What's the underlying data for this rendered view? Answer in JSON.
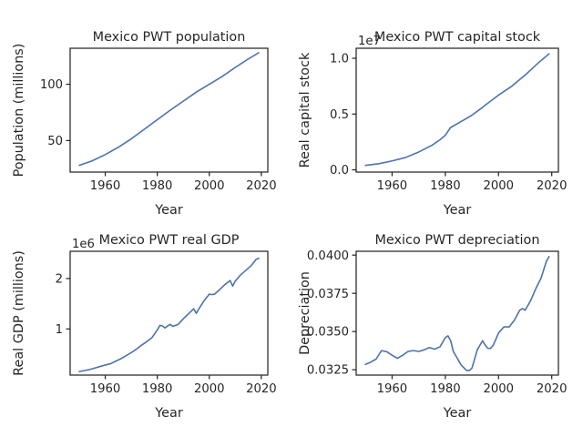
{
  "chart_data": [
    {
      "type": "line",
      "title": "Mexico PWT population",
      "xlabel": "Year",
      "ylabel": "Population (millions)",
      "offset_text": "",
      "xlim": [
        1946.5,
        2022.5
      ],
      "ylim": [
        22,
        132
      ],
      "xticks": [
        1960,
        1980,
        2000,
        2020
      ],
      "yticks": [
        50,
        100
      ],
      "ytick_labels": [
        "50",
        "100"
      ],
      "series": [
        {
          "x": [
            1950,
            1955,
            1960,
            1965,
            1970,
            1975,
            1980,
            1985,
            1990,
            1995,
            2000,
            2005,
            2010,
            2015,
            2019
          ],
          "y": [
            28,
            32,
            37.5,
            44,
            51.5,
            60,
            68.5,
            77,
            85,
            93,
            100,
            107,
            115,
            122.5,
            128
          ]
        }
      ]
    },
    {
      "type": "line",
      "title": "Mexico PWT capital stock",
      "xlabel": "Year",
      "ylabel": "Real capital stock",
      "offset_text": "1e7",
      "xlim": [
        1946.5,
        2022.5
      ],
      "ylim": [
        -200000,
        10900000
      ],
      "xticks": [
        1960,
        1980,
        2000,
        2020
      ],
      "yticks": [
        0,
        5000000,
        10000000
      ],
      "ytick_labels": [
        "0.0",
        "0.5",
        "1.0"
      ],
      "series": [
        {
          "x": [
            1950,
            1955,
            1960,
            1965,
            1970,
            1975,
            1978,
            1980,
            1982,
            1985,
            1990,
            1994,
            1995,
            2000,
            2005,
            2010,
            2015,
            2019
          ],
          "y": [
            400000,
            550000,
            800000,
            1100000,
            1600000,
            2200000,
            2700000,
            3100000,
            3800000,
            4200000,
            4900000,
            5600000,
            5800000,
            6700000,
            7500000,
            8500000,
            9600000,
            10400000
          ]
        }
      ]
    },
    {
      "type": "line",
      "title": "Mexico PWT real GDP",
      "xlabel": "Year",
      "ylabel": "Real GDP (millions)",
      "offset_text": "1e6",
      "xlim": [
        1946.5,
        2022.5
      ],
      "ylim": [
        85000,
        2540000
      ],
      "xticks": [
        1960,
        1980,
        2000,
        2020
      ],
      "yticks": [
        1000000,
        2000000
      ],
      "ytick_labels": [
        "1",
        "2"
      ],
      "series": [
        {
          "x": [
            1950,
            1952,
            1954,
            1956,
            1958,
            1960,
            1962,
            1964,
            1966,
            1968,
            1970,
            1972,
            1974,
            1976,
            1978,
            1980,
            1981,
            1982,
            1983,
            1984,
            1985,
            1986,
            1987,
            1988,
            1990,
            1992,
            1994,
            1995,
            1996,
            1998,
            2000,
            2001,
            2002,
            2004,
            2006,
            2008,
            2009,
            2010,
            2012,
            2014,
            2016,
            2018,
            2019
          ],
          "y": [
            155000,
            175000,
            195000,
            225000,
            255000,
            285000,
            310000,
            360000,
            410000,
            470000,
            530000,
            600000,
            680000,
            750000,
            830000,
            980000,
            1070000,
            1060000,
            1020000,
            1060000,
            1090000,
            1050000,
            1070000,
            1090000,
            1200000,
            1300000,
            1400000,
            1310000,
            1400000,
            1560000,
            1690000,
            1680000,
            1690000,
            1780000,
            1880000,
            1960000,
            1850000,
            1950000,
            2070000,
            2160000,
            2250000,
            2380000,
            2400000
          ]
        }
      ]
    },
    {
      "type": "line",
      "title": "Mexico PWT depreciation",
      "xlabel": "Year",
      "ylabel": "Depreciation",
      "offset_text": "",
      "xlim": [
        1946.5,
        2022.5
      ],
      "ylim": [
        0.03215,
        0.04025
      ],
      "xticks": [
        1960,
        1980,
        2000,
        2020
      ],
      "yticks": [
        0.0325,
        0.035,
        0.0375,
        0.04
      ],
      "ytick_labels": [
        "0.0325",
        "0.0350",
        "0.0375",
        "0.0400"
      ],
      "series": [
        {
          "x": [
            1950,
            1952,
            1954,
            1956,
            1958,
            1960,
            1962,
            1964,
            1966,
            1968,
            1970,
            1972,
            1974,
            1976,
            1978,
            1980,
            1981,
            1982,
            1983,
            1984,
            1985,
            1986,
            1988,
            1989,
            1990,
            1992,
            1994,
            1995,
            1996,
            1997,
            1998,
            2000,
            2002,
            2004,
            2006,
            2008,
            2009,
            2010,
            2012,
            2014,
            2016,
            2018,
            2019
          ],
          "y": [
            0.03285,
            0.033,
            0.0332,
            0.03375,
            0.03368,
            0.03345,
            0.03325,
            0.03345,
            0.0337,
            0.03375,
            0.0337,
            0.0338,
            0.03395,
            0.03385,
            0.034,
            0.0346,
            0.03472,
            0.0344,
            0.0337,
            0.0334,
            0.0331,
            0.0328,
            0.03245,
            0.03245,
            0.0326,
            0.0338,
            0.0344,
            0.0341,
            0.0339,
            0.0339,
            0.0341,
            0.0349,
            0.0353,
            0.0353,
            0.03575,
            0.0364,
            0.0365,
            0.0364,
            0.037,
            0.0378,
            0.0385,
            0.0396,
            0.0399
          ]
        }
      ]
    }
  ]
}
